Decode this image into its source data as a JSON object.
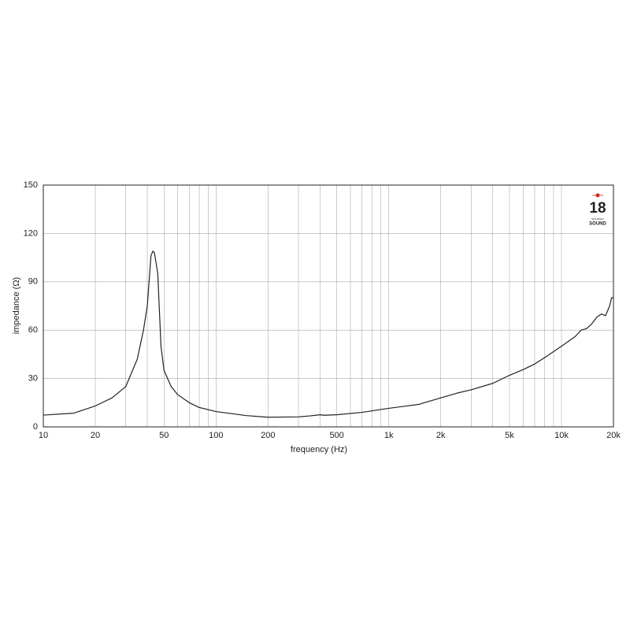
{
  "chart_data": {
    "type": "line",
    "xlabel": "frequency (Hz)",
    "ylabel": "impedance (Ω)",
    "logo": {
      "number": "18",
      "tagline": "EIGHTEEN",
      "name": "SOUND"
    },
    "xscale": "log",
    "x": [
      10,
      15,
      20,
      25,
      30,
      35,
      38,
      40,
      42,
      43,
      44,
      46,
      48,
      50,
      55,
      60,
      70,
      80,
      100,
      150,
      200,
      300,
      350,
      400,
      420,
      500,
      700,
      1000,
      1500,
      2000,
      2500,
      3000,
      4000,
      5000,
      6000,
      7000,
      8000,
      10000,
      12000,
      13000,
      14000,
      15000,
      16000,
      17000,
      18000,
      19000,
      19500,
      20000
    ],
    "values": [
      7.3,
      8.5,
      13,
      18,
      25,
      42,
      60,
      75,
      106,
      109,
      108,
      95,
      50,
      35,
      25,
      20,
      15,
      12,
      9.5,
      7,
      6,
      6.2,
      6.8,
      7.5,
      7.2,
      7.5,
      9,
      11.5,
      14,
      18,
      21,
      23,
      27,
      32,
      35.5,
      39,
      43,
      50,
      56,
      60,
      61,
      64,
      68,
      70,
      69,
      75,
      80,
      80
    ],
    "color": "#222222",
    "xlim": [
      10,
      20000
    ],
    "ylim": [
      0,
      150
    ],
    "xticks": [
      10,
      20,
      50,
      100,
      200,
      500,
      {
        "value": 1000,
        "label": "1k"
      },
      {
        "value": 2000,
        "label": "2k"
      },
      {
        "value": 5000,
        "label": "5k"
      },
      {
        "value": 10000,
        "label": "10k"
      },
      {
        "value": 20000,
        "label": "20k"
      }
    ],
    "xgrid_minor": [
      30,
      40,
      60,
      70,
      80,
      90,
      300,
      400,
      600,
      700,
      800,
      900,
      3000,
      4000,
      6000,
      7000,
      8000,
      9000
    ],
    "yticks": [
      0,
      30,
      60,
      90,
      120,
      150
    ],
    "grid": true
  }
}
